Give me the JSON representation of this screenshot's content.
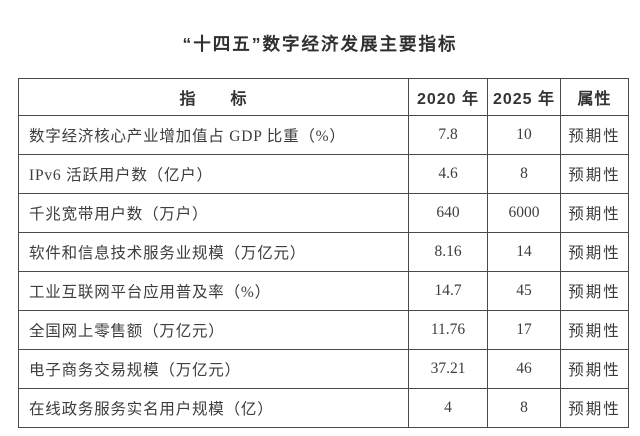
{
  "title": "“十四五”数字经济发展主要指标",
  "table": {
    "headers": {
      "indicator": "指　　标",
      "y2020": "2020 年",
      "y2025": "2025 年",
      "attribute": "属性"
    },
    "rows": [
      {
        "indicator": "数字经济核心产业增加值占 GDP 比重（%）",
        "y2020": "7.8",
        "y2025": "10",
        "attribute": "预期性"
      },
      {
        "indicator": "IPv6 活跃用户数（亿户）",
        "y2020": "4.6",
        "y2025": "8",
        "attribute": "预期性"
      },
      {
        "indicator": "千兆宽带用户数（万户）",
        "y2020": "640",
        "y2025": "6000",
        "attribute": "预期性"
      },
      {
        "indicator": "软件和信息技术服务业规模（万亿元）",
        "y2020": "8.16",
        "y2025": "14",
        "attribute": "预期性"
      },
      {
        "indicator": "工业互联网平台应用普及率（%）",
        "y2020": "14.7",
        "y2025": "45",
        "attribute": "预期性"
      },
      {
        "indicator": "全国网上零售额（万亿元）",
        "y2020": "11.76",
        "y2025": "17",
        "attribute": "预期性"
      },
      {
        "indicator": "电子商务交易规模（万亿元）",
        "y2020": "37.21",
        "y2025": "46",
        "attribute": "预期性"
      },
      {
        "indicator": "在线政务服务实名用户规模（亿）",
        "y2020": "4",
        "y2025": "8",
        "attribute": "预期性"
      }
    ]
  }
}
